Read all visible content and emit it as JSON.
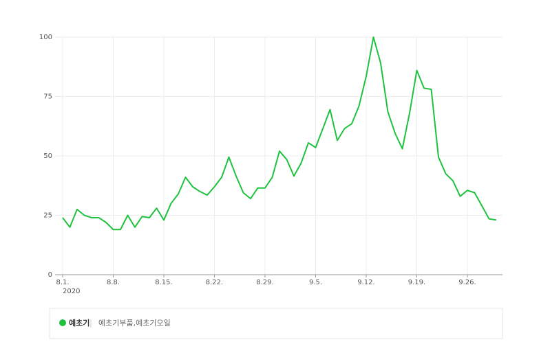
{
  "chart_data": {
    "type": "line",
    "categories": [
      "8.1.",
      null,
      null,
      null,
      null,
      null,
      null,
      "8.8.",
      null,
      null,
      null,
      null,
      null,
      null,
      "8.15.",
      null,
      null,
      null,
      null,
      null,
      null,
      "8.22.",
      null,
      null,
      null,
      null,
      null,
      null,
      "8.29.",
      null,
      null,
      null,
      null,
      null,
      null,
      "9.5.",
      null,
      null,
      null,
      null,
      null,
      null,
      "9.12.",
      null,
      null,
      null,
      null,
      null,
      null,
      "9.19.",
      null,
      null,
      null,
      null,
      null,
      null,
      "9.26.",
      null,
      null,
      null,
      null
    ],
    "year_label": "2020",
    "series": [
      {
        "name": "예초기",
        "color": "#1ec23f",
        "values": [
          24,
          20,
          27.5,
          25,
          24,
          24,
          22,
          19,
          19,
          25,
          20,
          24.5,
          24,
          28,
          23,
          30,
          34,
          41,
          37,
          35,
          33.5,
          37,
          41,
          49.5,
          41.5,
          34.5,
          32,
          36.5,
          36.5,
          41,
          52,
          48.5,
          41.5,
          47,
          55.5,
          53.5,
          61.5,
          69.5,
          56.5,
          61.5,
          63.5,
          71,
          83.5,
          100,
          89,
          68.5,
          59.5,
          53,
          68,
          86,
          78.5,
          78,
          49.5,
          42.5,
          39.5,
          33,
          35.5,
          34.5,
          29,
          23.5,
          23
        ]
      }
    ],
    "legend_note": "예초기부품,예초기오일",
    "ylim": [
      0,
      100
    ],
    "yticks": [
      0,
      25,
      50,
      75,
      100
    ],
    "grid": true
  }
}
